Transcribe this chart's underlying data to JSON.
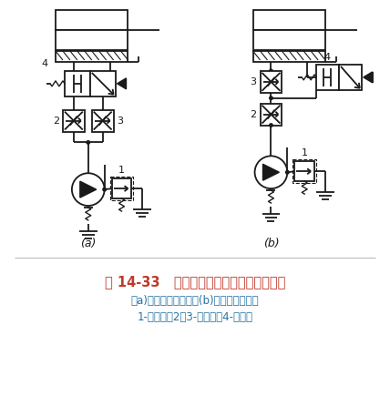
{
  "title_line1": "图 14-33   采用两个调速阀的速度换接回路",
  "title_line2": "（a)调速阀并联回路；(b)调速阀串联回路",
  "title_line3": "1-溢流阀；2、3-调速阀；4-换向阀",
  "label_a": "(a)",
  "label_b": "(b)",
  "bg_color": "#ffffff",
  "line_color": "#1a1a1a",
  "title_color": "#c0392b",
  "subtitle_color": "#2471a3",
  "font_size_title": 10.5,
  "font_size_sub": 8.5,
  "font_size_label": 9
}
